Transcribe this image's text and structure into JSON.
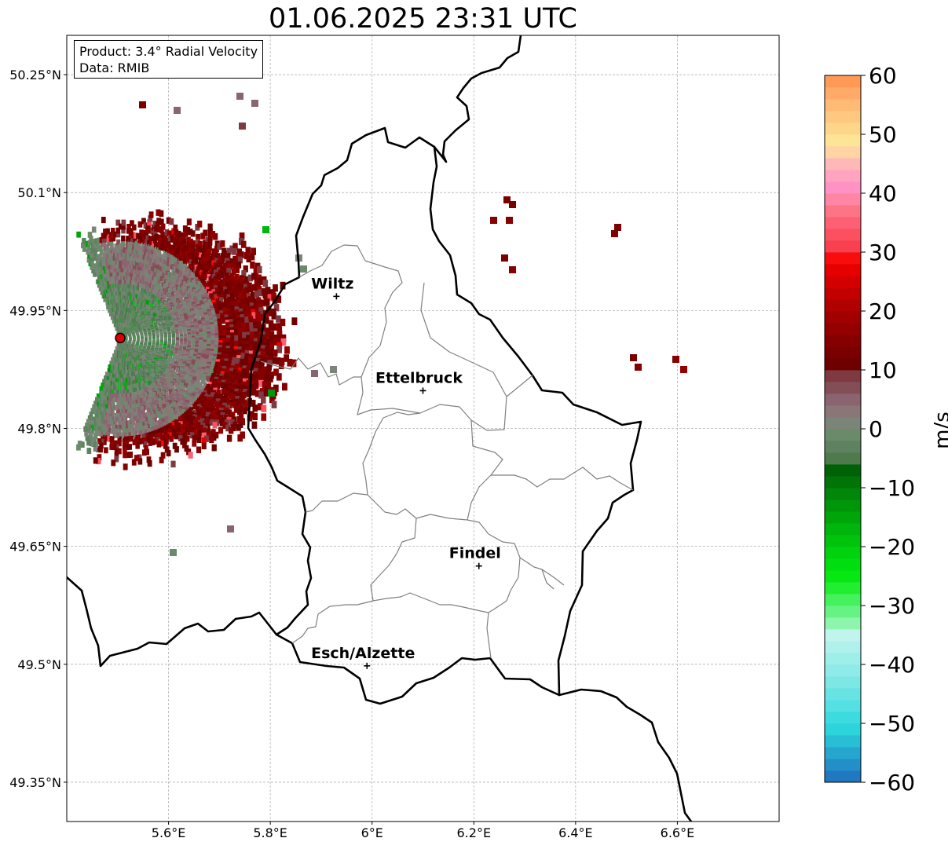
{
  "header": {
    "title": "01.06.2025 23:31 UTC"
  },
  "info": {
    "product": "Product: 3.4° Radial Velocity",
    "data_source": "Data: RMIB"
  },
  "axes": {
    "lon_range": [
      5.4,
      6.8
    ],
    "lat_range": [
      49.3,
      50.3
    ],
    "lon_ticks": [
      {
        "value": 5.6,
        "label": "5.6°E"
      },
      {
        "value": 5.8,
        "label": "5.8°E"
      },
      {
        "value": 6.0,
        "label": "6°E"
      },
      {
        "value": 6.2,
        "label": "6.2°E"
      },
      {
        "value": 6.4,
        "label": "6.4°E"
      },
      {
        "value": 6.6,
        "label": "6.6°E"
      }
    ],
    "lat_ticks": [
      {
        "value": 50.25,
        "label": "50.25°N"
      },
      {
        "value": 50.1,
        "label": "50.1°N"
      },
      {
        "value": 49.95,
        "label": "49.95°N"
      },
      {
        "value": 49.8,
        "label": "49.8°N"
      },
      {
        "value": 49.65,
        "label": "49.65°N"
      },
      {
        "value": 49.5,
        "label": "49.5°N"
      },
      {
        "value": 49.35,
        "label": "49.35°N"
      }
    ],
    "grid": true
  },
  "cities": [
    {
      "name": "Wiltz",
      "lon": 5.93,
      "lat": 49.968
    },
    {
      "name": "Ettelbruck",
      "lon": 6.1,
      "lat": 49.848
    },
    {
      "name": "Findel",
      "lon": 6.21,
      "lat": 49.625
    },
    {
      "name": "Esch/Alzette",
      "lon": 5.99,
      "lat": 49.498
    }
  ],
  "radar": {
    "lon": 5.505,
    "lat": 49.915,
    "color": "#dd0000"
  },
  "colorbar": {
    "min": -60,
    "max": 60,
    "unit": "m/s",
    "ticks": [
      {
        "value": 60,
        "label": "60"
      },
      {
        "value": 50,
        "label": "50"
      },
      {
        "value": 40,
        "label": "40"
      },
      {
        "value": 30,
        "label": "30"
      },
      {
        "value": 20,
        "label": "20"
      },
      {
        "value": 10,
        "label": "10"
      },
      {
        "value": 0,
        "label": "0"
      },
      {
        "value": -10,
        "label": "−10"
      },
      {
        "value": -20,
        "label": "−20"
      },
      {
        "value": -30,
        "label": "−30"
      },
      {
        "value": -40,
        "label": "−40"
      },
      {
        "value": -50,
        "label": "−50"
      },
      {
        "value": -60,
        "label": "−60"
      }
    ],
    "stops": [
      {
        "from": -60,
        "to": -58,
        "color": "#1f78c0"
      },
      {
        "from": -58,
        "to": -56,
        "color": "#238fc8"
      },
      {
        "from": -56,
        "to": -54,
        "color": "#26a6cf"
      },
      {
        "from": -54,
        "to": -52,
        "color": "#28bfd6"
      },
      {
        "from": -52,
        "to": -50,
        "color": "#2cd4dc"
      },
      {
        "from": -50,
        "to": -48,
        "color": "#3bdbe0"
      },
      {
        "from": -48,
        "to": -46,
        "color": "#55e0e3"
      },
      {
        "from": -46,
        "to": -44,
        "color": "#68e3e4"
      },
      {
        "from": -44,
        "to": -42,
        "color": "#7de7e6"
      },
      {
        "from": -42,
        "to": -40,
        "color": "#8eebe9"
      },
      {
        "from": -40,
        "to": -38,
        "color": "#9eeeea"
      },
      {
        "from": -38,
        "to": -36,
        "color": "#b0f1ec"
      },
      {
        "from": -36,
        "to": -34,
        "color": "#c2f4ee"
      },
      {
        "from": -34,
        "to": -32,
        "color": "#8ef5ac"
      },
      {
        "from": -32,
        "to": -30,
        "color": "#66f384"
      },
      {
        "from": -30,
        "to": -28,
        "color": "#45f25e"
      },
      {
        "from": -28,
        "to": -26,
        "color": "#22ee30"
      },
      {
        "from": -26,
        "to": -24,
        "color": "#05e812"
      },
      {
        "from": -24,
        "to": -22,
        "color": "#00de10"
      },
      {
        "from": -22,
        "to": -20,
        "color": "#00d20e"
      },
      {
        "from": -20,
        "to": -18,
        "color": "#00c40c"
      },
      {
        "from": -18,
        "to": -16,
        "color": "#00b50b"
      },
      {
        "from": -16,
        "to": -14,
        "color": "#00a50a"
      },
      {
        "from": -14,
        "to": -12,
        "color": "#009609"
      },
      {
        "from": -12,
        "to": -10,
        "color": "#008608"
      },
      {
        "from": -10,
        "to": -8,
        "color": "#007407"
      },
      {
        "from": -8,
        "to": -6,
        "color": "#006206"
      },
      {
        "from": -6,
        "to": -4,
        "color": "#4f7a4e"
      },
      {
        "from": -4,
        "to": -2,
        "color": "#5e8260"
      },
      {
        "from": -2,
        "to": 0,
        "color": "#6a8a6a"
      },
      {
        "from": 0,
        "to": 2,
        "color": "#7a8478"
      },
      {
        "from": 2,
        "to": 4,
        "color": "#8a7676"
      },
      {
        "from": 4,
        "to": 6,
        "color": "#8a6470"
      },
      {
        "from": 6,
        "to": 8,
        "color": "#844e56"
      },
      {
        "from": 8,
        "to": 10,
        "color": "#7e3a40"
      },
      {
        "from": 10,
        "to": 12,
        "color": "#6e0000"
      },
      {
        "from": 12,
        "to": 14,
        "color": "#7a0000"
      },
      {
        "from": 14,
        "to": 16,
        "color": "#860000"
      },
      {
        "from": 16,
        "to": 18,
        "color": "#940000"
      },
      {
        "from": 18,
        "to": 20,
        "color": "#a20000"
      },
      {
        "from": 20,
        "to": 22,
        "color": "#b00000"
      },
      {
        "from": 22,
        "to": 24,
        "color": "#c20000"
      },
      {
        "from": 24,
        "to": 26,
        "color": "#d40000"
      },
      {
        "from": 26,
        "to": 28,
        "color": "#e60000"
      },
      {
        "from": 28,
        "to": 30,
        "color": "#f80c0c"
      },
      {
        "from": 30,
        "to": 32,
        "color": "#f84050"
      },
      {
        "from": 32,
        "to": 34,
        "color": "#fb5060"
      },
      {
        "from": 34,
        "to": 36,
        "color": "#fc6072"
      },
      {
        "from": 36,
        "to": 38,
        "color": "#fd7486"
      },
      {
        "from": 38,
        "to": 40,
        "color": "#fe86a4"
      },
      {
        "from": 40,
        "to": 42,
        "color": "#ff92c4"
      },
      {
        "from": 42,
        "to": 44,
        "color": "#ffa4c0"
      },
      {
        "from": 44,
        "to": 46,
        "color": "#ffb8b8"
      },
      {
        "from": 46,
        "to": 48,
        "color": "#ffd4a4"
      },
      {
        "from": 48,
        "to": 50,
        "color": "#fee496"
      },
      {
        "from": 50,
        "to": 52,
        "color": "#fed68a"
      },
      {
        "from": 52,
        "to": 54,
        "color": "#ffc880"
      },
      {
        "from": 54,
        "to": 56,
        "color": "#ffba76"
      },
      {
        "from": 56,
        "to": 58,
        "color": "#ffaa68"
      },
      {
        "from": 58,
        "to": 60,
        "color": "#ff9a56"
      }
    ]
  }
}
